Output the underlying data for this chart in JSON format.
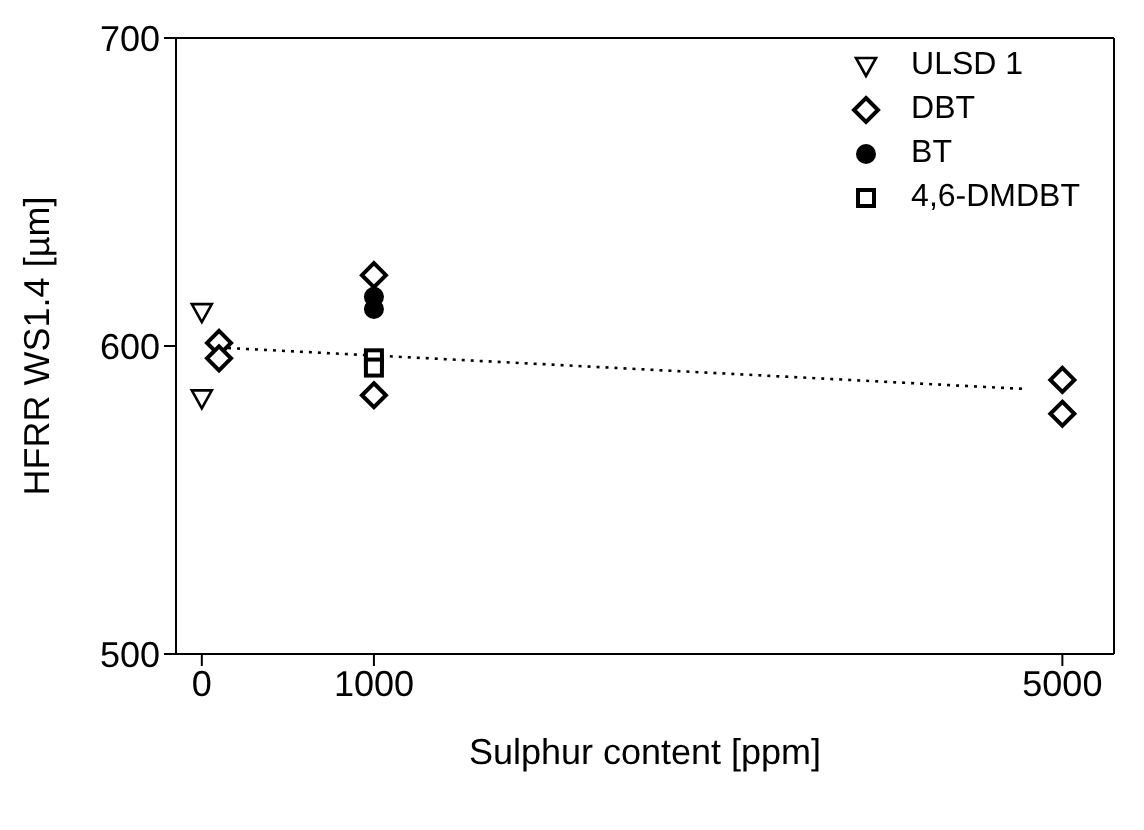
{
  "chart_data": {
    "type": "scatter",
    "xlabel": "Sulphur content [ppm]",
    "ylabel": "HFRR WS1.4 [µm]",
    "xlim": [
      -150,
      5300
    ],
    "xticks": [
      0,
      1000,
      5000
    ],
    "ylim": [
      500,
      700
    ],
    "yticks": [
      500,
      600,
      700
    ],
    "legend": "top right",
    "series": [
      {
        "name": "ULSD 1",
        "color": "#000000",
        "marker": "triangle",
        "x": [
          0,
          0
        ],
        "values": [
          611,
          583
        ]
      },
      {
        "name": "DBT",
        "color": "#000000",
        "marker": "diamond",
        "x": [
          100,
          100,
          1000,
          1000,
          5000,
          5000
        ],
        "values": [
          601,
          596,
          623,
          584,
          589,
          578
        ]
      },
      {
        "name": "BT",
        "color": "#000000",
        "marker": "circle",
        "x": [
          1000,
          1000
        ],
        "values": [
          616,
          612
        ]
      },
      {
        "name": "4,6-DMDBT",
        "color": "#000000",
        "marker": "square",
        "x": [
          1000,
          1000
        ],
        "values": [
          596,
          593
        ]
      },
      {
        "type": "line",
        "color": "#000000",
        "line_style": "dotted",
        "marker": "none",
        "x": [
          100,
          4800
        ],
        "values": [
          599.5,
          586
        ]
      }
    ]
  }
}
